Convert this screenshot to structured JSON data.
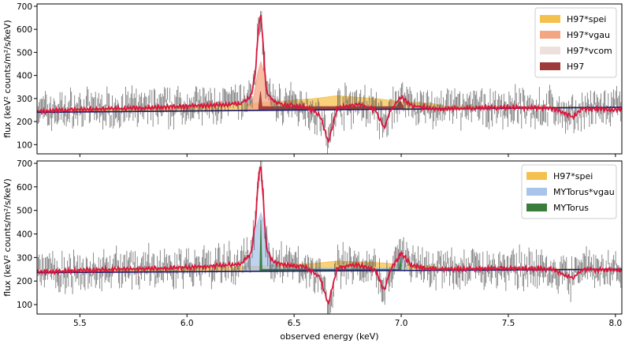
{
  "chart_data": [
    {
      "type": "line",
      "panel": "top",
      "ylabel": "flux (keV² counts/m²/s/keV)",
      "xlabel": "",
      "xlim": [
        5.3,
        8.03
      ],
      "ylim": [
        60,
        710
      ],
      "yticks": [
        100,
        200,
        300,
        400,
        500,
        600,
        700
      ],
      "xticks": [
        5.5,
        6.0,
        6.5,
        7.0,
        7.5,
        8.0
      ],
      "show_xticklabels": false,
      "legend_position": "top-right",
      "legend": [
        {
          "label": "H97*spei",
          "color": "#f5c14e"
        },
        {
          "label": "H97*vgau",
          "color": "#f4a582"
        },
        {
          "label": "H97*vcom",
          "color": "#eee0dc"
        },
        {
          "label": "H97",
          "color": "#9e3a3a"
        }
      ],
      "series": [
        {
          "name": "continuum",
          "color": "#1a1a6e",
          "x": [
            5.3,
            8.03
          ],
          "y": [
            240,
            262
          ]
        },
        {
          "name": "H97*spei",
          "color": "#f5c14e",
          "x": [
            5.3,
            5.8,
            6.1,
            6.3,
            6.6,
            6.7,
            6.9,
            7.0,
            7.15,
            7.2,
            7.4,
            8.03
          ],
          "y": [
            242,
            262,
            272,
            278,
            300,
            312,
            298,
            286,
            278,
            266,
            265,
            262
          ]
        },
        {
          "name": "H97*vgau",
          "color": "#f4a582",
          "x": [
            6.28,
            6.31,
            6.33,
            6.345,
            6.36,
            6.38,
            6.41
          ],
          "y": [
            268,
            300,
            410,
            460,
            410,
            300,
            272
          ]
        },
        {
          "name": "H97",
          "color": "#9e3a3a",
          "x": [
            6.335,
            6.343,
            6.35,
            6.98,
            6.995,
            7.01
          ],
          "y": [
            265,
            330,
            265,
            265,
            290,
            265
          ]
        },
        {
          "name": "model",
          "color": "#dc143c",
          "x": [
            5.3,
            5.6,
            5.9,
            6.1,
            6.25,
            6.3,
            6.32,
            6.335,
            6.345,
            6.355,
            6.37,
            6.4,
            6.45,
            6.55,
            6.62,
            6.66,
            6.7,
            6.8,
            6.88,
            6.92,
            6.95,
            7.0,
            7.05,
            7.15,
            7.3,
            7.5,
            7.7,
            7.8,
            7.85,
            8.03
          ],
          "y": [
            245,
            255,
            262,
            270,
            278,
            310,
            420,
            620,
            660,
            540,
            330,
            290,
            275,
            265,
            230,
            110,
            260,
            275,
            250,
            170,
            250,
            305,
            270,
            255,
            258,
            262,
            258,
            220,
            255,
            250
          ]
        }
      ]
    },
    {
      "type": "line",
      "panel": "bottom",
      "ylabel": "flux (keV² counts/m²/s/keV)",
      "xlabel": "observed energy (keV)",
      "xlim": [
        5.3,
        8.03
      ],
      "ylim": [
        60,
        710
      ],
      "yticks": [
        100,
        200,
        300,
        400,
        500,
        600,
        700
      ],
      "xticks": [
        5.5,
        6.0,
        6.5,
        7.0,
        7.5,
        8.0
      ],
      "show_xticklabels": true,
      "legend_position": "top-right",
      "legend": [
        {
          "label": "H97*spei",
          "color": "#f5c14e"
        },
        {
          "label": "MYTorus*vgau",
          "color": "#a9c4ea"
        },
        {
          "label": "MYTorus",
          "color": "#3a7d3a"
        }
      ],
      "series": [
        {
          "name": "continuum",
          "color": "#1a1a6e",
          "x": [
            5.3,
            8.03
          ],
          "y": [
            236,
            250
          ]
        },
        {
          "name": "H97*spei",
          "color": "#f5c14e",
          "x": [
            5.3,
            5.8,
            6.1,
            6.3,
            6.6,
            6.7,
            6.9,
            7.0,
            7.15,
            7.2,
            7.4,
            8.03
          ],
          "y": [
            238,
            250,
            258,
            262,
            275,
            285,
            278,
            270,
            262,
            255,
            253,
            250
          ]
        },
        {
          "name": "MYTorus*vgau",
          "color": "#a9c4ea",
          "x": [
            6.26,
            6.3,
            6.32,
            6.345,
            6.37,
            6.39,
            6.43,
            6.97,
            7.0,
            7.03
          ],
          "y": [
            250,
            300,
            420,
            490,
            420,
            300,
            255,
            255,
            310,
            255
          ]
        },
        {
          "name": "MYTorus",
          "color": "#3a7d3a",
          "x": [
            6.34,
            6.345,
            6.35,
            6.99,
            6.995,
            7.0
          ],
          "y": [
            250,
            460,
            250,
            250,
            300,
            250
          ]
        },
        {
          "name": "model",
          "color": "#dc143c",
          "x": [
            5.3,
            5.6,
            5.9,
            6.1,
            6.25,
            6.3,
            6.32,
            6.335,
            6.345,
            6.355,
            6.37,
            6.4,
            6.45,
            6.55,
            6.62,
            6.66,
            6.7,
            6.8,
            6.88,
            6.92,
            6.95,
            7.0,
            7.05,
            7.15,
            7.3,
            7.5,
            7.7,
            7.8,
            7.85,
            8.03
          ],
          "y": [
            240,
            248,
            254,
            262,
            272,
            320,
            450,
            660,
            690,
            560,
            340,
            285,
            270,
            260,
            220,
            100,
            255,
            270,
            245,
            160,
            245,
            320,
            265,
            250,
            252,
            255,
            252,
            212,
            250,
            245
          ]
        }
      ]
    }
  ]
}
